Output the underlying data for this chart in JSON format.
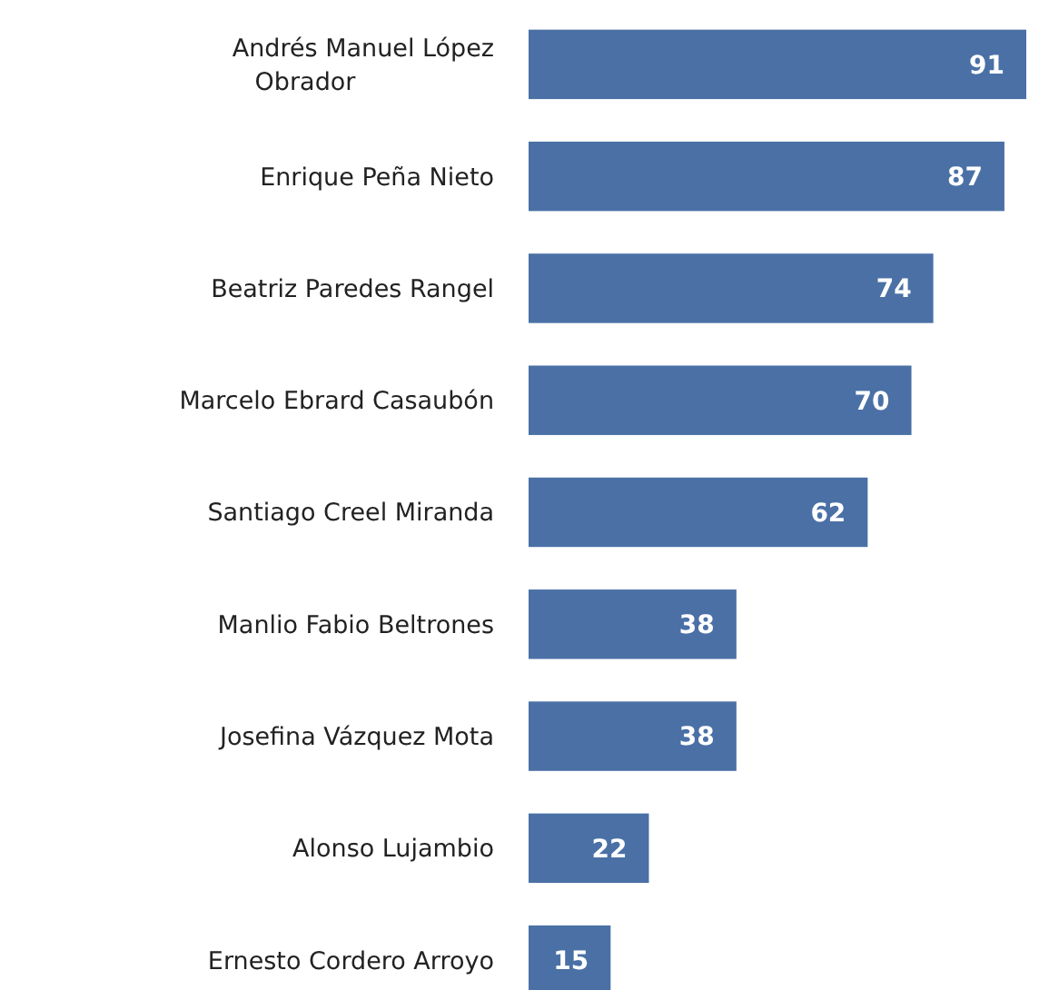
{
  "chart_data": {
    "type": "bar",
    "orientation": "horizontal",
    "categories": [
      "Andrés Manuel López Obrador",
      "Enrique Peña Nieto",
      "Beatriz Paredes Rangel",
      "Marcelo Ebrard Casaubón",
      "Santiago Creel Miranda",
      "Manlio Fabio Beltrones",
      "Josefina Vázquez Mota",
      "Alonso Lujambio",
      "Ernesto Cordero Arroyo"
    ],
    "values": [
      91,
      87,
      74,
      70,
      62,
      38,
      38,
      22,
      15
    ],
    "color": "#4a70a6",
    "data_labels": true
  }
}
